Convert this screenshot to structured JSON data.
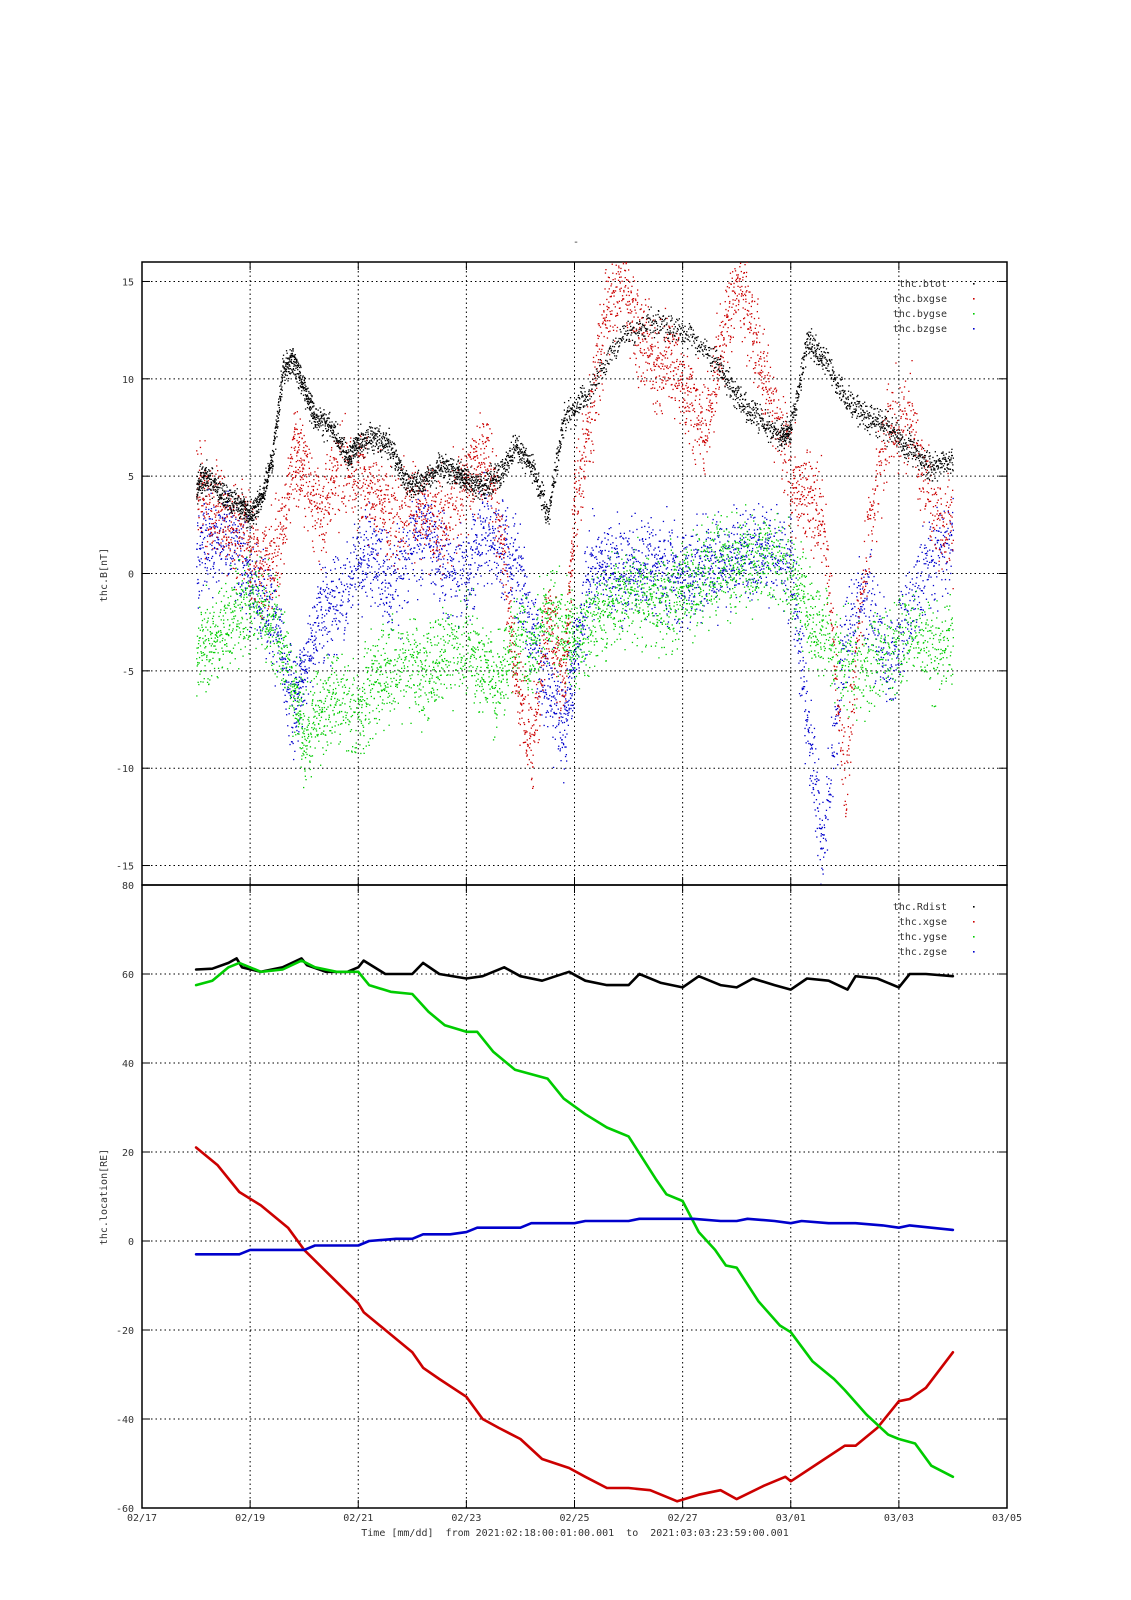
{
  "title": "-",
  "colors": {
    "black": "#000000",
    "red": "#cc0000",
    "green": "#00cc00",
    "blue": "#0000cc"
  },
  "chart_data": [
    {
      "type": "scatter",
      "panel": "top",
      "ylabel": "thc.B[nT]",
      "ylim": [
        -16,
        16
      ],
      "yticks": [
        15,
        10,
        5,
        0,
        -5,
        -10,
        -15
      ],
      "xlim_days": [
        0,
        16
      ],
      "grid": true,
      "legend_position": "top-right",
      "series": [
        {
          "name": "thc.btot",
          "color": "#000000",
          "x": [
            1.0,
            1.2,
            1.5,
            1.8,
            2.0,
            2.2,
            2.4,
            2.6,
            2.8,
            3.0,
            3.2,
            3.5,
            3.8,
            4.0,
            4.3,
            4.6,
            4.9,
            5.2,
            5.5,
            5.8,
            6.0,
            6.3,
            6.6,
            6.9,
            7.2,
            7.5,
            7.8,
            8.2,
            8.8,
            9.4,
            10.0,
            10.6,
            11.0,
            11.4,
            11.8,
            12.0,
            12.3,
            12.6,
            13.0,
            13.4,
            13.8,
            14.2,
            14.6,
            15.0
          ],
          "y": [
            4.6,
            4.9,
            4.0,
            3.5,
            3.0,
            3.8,
            5.8,
            10.5,
            11.0,
            9.5,
            8.0,
            7.5,
            6.0,
            6.8,
            7.0,
            6.5,
            4.5,
            4.8,
            5.5,
            5.2,
            4.8,
            4.5,
            5.0,
            6.5,
            5.5,
            3.0,
            8.0,
            9.0,
            12.0,
            13.0,
            12.5,
            11.0,
            9.0,
            8.0,
            7.0,
            7.5,
            12.0,
            11.0,
            9.0,
            8.0,
            7.5,
            6.5,
            5.5,
            5.8
          ]
        },
        {
          "name": "thc.bxgse",
          "color": "#cc0000",
          "x": [
            1.0,
            1.3,
            1.6,
            1.9,
            2.2,
            2.5,
            2.8,
            3.0,
            3.3,
            3.6,
            4.0,
            4.3,
            4.6,
            5.0,
            5.3,
            5.6,
            6.0,
            6.3,
            6.6,
            6.9,
            7.2,
            7.5,
            7.8,
            8.0,
            8.3,
            8.6,
            8.9,
            9.2,
            9.5,
            9.8,
            10.1,
            10.4,
            10.7,
            11.0,
            11.3,
            11.6,
            12.0,
            12.3,
            12.6,
            13.0,
            13.4,
            13.8,
            14.2,
            14.6,
            15.0
          ],
          "y": [
            4.0,
            3.5,
            2.5,
            2.0,
            0.5,
            1.0,
            6.0,
            5.0,
            3.0,
            5.5,
            5.0,
            4.0,
            3.0,
            3.5,
            3.0,
            2.5,
            5.0,
            6.0,
            3.0,
            -5.0,
            -9.0,
            -2.0,
            -6.0,
            4.0,
            8.0,
            14.0,
            15.0,
            12.0,
            10.5,
            11.0,
            9.0,
            7.5,
            11.5,
            15.0,
            12.5,
            9.0,
            5.0,
            4.0,
            3.0,
            -11.0,
            2.0,
            7.5,
            8.0,
            3.0,
            2.0
          ]
        },
        {
          "name": "thc.bygse",
          "color": "#00cc00",
          "x": [
            1.0,
            1.3,
            1.6,
            1.9,
            2.2,
            2.5,
            2.8,
            3.0,
            3.3,
            3.6,
            4.0,
            4.3,
            4.6,
            5.0,
            5.3,
            5.6,
            6.0,
            6.3,
            6.6,
            6.9,
            7.2,
            7.5,
            7.8,
            8.0,
            8.3,
            8.6,
            8.9,
            9.2,
            9.5,
            9.8,
            10.1,
            10.4,
            10.7,
            11.0,
            11.3,
            11.6,
            12.0,
            12.3,
            12.6,
            13.0,
            13.4,
            13.8,
            14.2,
            14.6,
            15.0
          ],
          "y": [
            -4.0,
            -3.5,
            -2.5,
            -1.5,
            -2.0,
            -3.0,
            -6.0,
            -8.5,
            -7.0,
            -6.5,
            -7.0,
            -5.5,
            -5.0,
            -4.5,
            -5.0,
            -4.0,
            -3.5,
            -5.0,
            -5.5,
            -3.0,
            -4.0,
            -2.0,
            -3.0,
            -3.5,
            -2.5,
            -1.5,
            -1.0,
            -1.0,
            -1.5,
            -1.0,
            -0.5,
            0.0,
            0.5,
            0.5,
            0.5,
            1.0,
            0.0,
            -2.0,
            -3.0,
            -4.5,
            -5.0,
            -4.0,
            -3.0,
            -4.0,
            -3.5
          ]
        },
        {
          "name": "thc.bzgse",
          "color": "#0000cc",
          "x": [
            1.0,
            1.3,
            1.6,
            1.9,
            2.2,
            2.5,
            2.8,
            3.0,
            3.3,
            3.6,
            4.0,
            4.3,
            4.6,
            5.0,
            5.3,
            5.6,
            6.0,
            6.3,
            6.6,
            6.9,
            7.2,
            7.5,
            7.8,
            8.0,
            8.3,
            8.6,
            8.9,
            9.2,
            9.5,
            9.8,
            10.1,
            10.4,
            10.7,
            11.0,
            11.3,
            11.6,
            12.0,
            12.3,
            12.6,
            13.0,
            13.4,
            13.8,
            14.2,
            14.6,
            15.0
          ],
          "y": [
            1.0,
            1.5,
            2.0,
            0.5,
            -1.5,
            -3.0,
            -7.0,
            -5.0,
            -2.0,
            -1.5,
            0.5,
            1.0,
            -1.0,
            1.5,
            2.0,
            0.5,
            -0.5,
            2.5,
            1.5,
            0.5,
            -3.0,
            -6.0,
            -8.0,
            -4.0,
            0.0,
            0.5,
            0.0,
            0.3,
            0.3,
            0.0,
            0.0,
            0.3,
            0.5,
            0.8,
            1.0,
            1.2,
            0.5,
            -8.0,
            -14.0,
            -3.0,
            -1.0,
            -5.0,
            -2.0,
            1.0,
            1.5
          ]
        }
      ]
    },
    {
      "type": "line",
      "panel": "bottom",
      "ylabel": "thc.location[RE]",
      "ylim": [
        -60,
        80
      ],
      "yticks": [
        80,
        60,
        40,
        20,
        0,
        -20,
        -40,
        -60
      ],
      "xlim_days": [
        0,
        16
      ],
      "xticks": [
        "02/17",
        "02/19",
        "02/21",
        "02/23",
        "02/25",
        "02/27",
        "03/01",
        "03/03",
        "03/05"
      ],
      "xtick_days": [
        0,
        2,
        4,
        6,
        8,
        10,
        12,
        14,
        16
      ],
      "xlabel": "Time [mm/dd]  from 2021:02:18:00:01:00.001  to  2021:03:03:23:59:00.001",
      "grid": true,
      "legend_position": "top-right",
      "series": [
        {
          "name": "thc.Rdist",
          "color": "#000000",
          "x": [
            1.0,
            1.3,
            1.6,
            1.75,
            1.85,
            2.2,
            2.6,
            2.95,
            3.05,
            3.4,
            3.8,
            4.0,
            4.1,
            4.5,
            5.0,
            5.2,
            5.5,
            6.0,
            6.3,
            6.7,
            7.0,
            7.4,
            7.9,
            8.2,
            8.6,
            9.0,
            9.2,
            9.6,
            10.0,
            10.3,
            10.7,
            11.0,
            11.3,
            11.7,
            12.0,
            12.3,
            12.7,
            13.05,
            13.2,
            13.6,
            14.0,
            14.2,
            14.5,
            15.0
          ],
          "y": [
            61.0,
            61.2,
            62.5,
            63.5,
            61.5,
            60.5,
            61.5,
            63.5,
            62.0,
            60.5,
            60.5,
            61.5,
            63.0,
            60.0,
            60.0,
            62.5,
            60.0,
            59.0,
            59.5,
            61.5,
            59.5,
            58.5,
            60.5,
            58.5,
            57.5,
            57.5,
            60.0,
            58.0,
            57.0,
            59.5,
            57.5,
            57.0,
            59.0,
            57.5,
            56.5,
            59.0,
            58.5,
            56.5,
            59.5,
            59.0,
            57.0,
            60.0,
            60.0,
            59.5
          ]
        },
        {
          "name": "thc.xgse",
          "color": "#cc0000",
          "x": [
            1.0,
            1.4,
            1.8,
            2.2,
            2.7,
            3.0,
            3.5,
            4.0,
            4.1,
            4.5,
            5.0,
            5.2,
            5.5,
            6.0,
            6.3,
            6.6,
            7.0,
            7.4,
            7.9,
            8.2,
            8.6,
            9.0,
            9.4,
            9.8,
            9.9,
            10.3,
            10.7,
            11.0,
            11.5,
            11.9,
            12.0,
            12.5,
            13.0,
            13.2,
            13.6,
            14.0,
            14.2,
            14.5,
            15.0
          ],
          "y": [
            21.0,
            17.0,
            11.0,
            8.0,
            3.0,
            -2.0,
            -8.0,
            -14.0,
            -16.0,
            -20.0,
            -25.0,
            -28.5,
            -31.0,
            -35.0,
            -40.0,
            -42.0,
            -44.5,
            -49.0,
            -51.0,
            -53.0,
            -55.5,
            -55.5,
            -56.0,
            -58.0,
            -58.5,
            -57.0,
            -56.0,
            -58.0,
            -55.0,
            -53.0,
            -54.0,
            -50.0,
            -46.0,
            -46.0,
            -42.0,
            -36.0,
            -35.5,
            -33.0,
            -25.0
          ]
        },
        {
          "name": "thc.ygse",
          "color": "#00cc00",
          "x": [
            1.0,
            1.3,
            1.6,
            1.8,
            2.2,
            2.6,
            2.95,
            3.2,
            3.6,
            4.0,
            4.2,
            4.6,
            5.0,
            5.3,
            5.6,
            6.0,
            6.2,
            6.5,
            6.9,
            7.5,
            7.8,
            8.2,
            8.6,
            9.0,
            9.5,
            9.7,
            10.0,
            10.3,
            10.6,
            10.8,
            11.0,
            11.4,
            11.8,
            12.0,
            12.4,
            12.8,
            13.0,
            13.4,
            13.8,
            14.0,
            14.3,
            14.6,
            15.0
          ],
          "y": [
            57.5,
            58.5,
            61.5,
            62.5,
            60.5,
            61.0,
            63.0,
            61.5,
            60.5,
            60.5,
            57.5,
            56.0,
            55.5,
            51.5,
            48.5,
            47.0,
            47.0,
            42.5,
            38.5,
            36.5,
            32.0,
            28.5,
            25.5,
            23.5,
            14.0,
            10.5,
            9.0,
            2.0,
            -2.0,
            -5.5,
            -6.0,
            -13.5,
            -19.0,
            -20.5,
            -27.0,
            -31.0,
            -33.5,
            -39.0,
            -43.5,
            -44.5,
            -45.5,
            -50.5,
            -53.0
          ]
        },
        {
          "name": "thc.zgse",
          "color": "#0000cc",
          "x": [
            1.0,
            1.5,
            1.8,
            2.0,
            2.5,
            3.0,
            3.2,
            3.7,
            4.0,
            4.2,
            4.7,
            5.0,
            5.2,
            5.7,
            6.0,
            6.2,
            6.7,
            7.0,
            7.2,
            7.7,
            8.0,
            8.2,
            8.7,
            9.0,
            9.2,
            9.7,
            10.0,
            10.2,
            10.7,
            11.0,
            11.2,
            11.7,
            12.0,
            12.2,
            12.7,
            13.0,
            13.2,
            13.7,
            14.0,
            14.2,
            14.6,
            15.0
          ],
          "y": [
            -3.0,
            -3.0,
            -3.0,
            -2.0,
            -2.0,
            -2.0,
            -1.0,
            -1.0,
            -1.0,
            0.0,
            0.5,
            0.5,
            1.5,
            1.5,
            2.0,
            3.0,
            3.0,
            3.0,
            4.0,
            4.0,
            4.0,
            4.5,
            4.5,
            4.5,
            5.0,
            5.0,
            5.0,
            5.0,
            4.5,
            4.5,
            5.0,
            4.5,
            4.0,
            4.5,
            4.0,
            4.0,
            4.0,
            3.5,
            3.0,
            3.5,
            3.0,
            2.5
          ]
        }
      ]
    }
  ]
}
